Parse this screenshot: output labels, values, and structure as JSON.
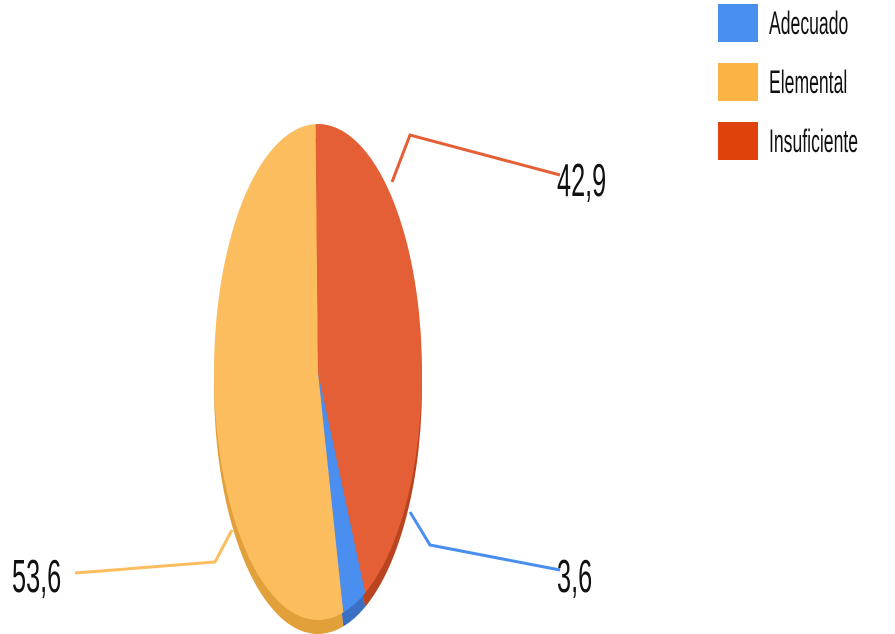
{
  "chart_data": {
    "type": "pie",
    "title": "",
    "legend_position": "right",
    "slices": [
      {
        "name": "Adecuado",
        "value": 3.6,
        "label": "3,6",
        "color": "#4a8ef0",
        "side": "#3a70c4"
      },
      {
        "name": "Elemental",
        "value": 53.6,
        "label": "53,6",
        "color": "#fbbd5d",
        "side": "#e2a03b"
      },
      {
        "name": "Insuficiente",
        "value": 42.9,
        "label": "42,9",
        "color": "#e45f35",
        "side": "#b9441f"
      }
    ]
  },
  "legend": [
    {
      "label": "Adecuado",
      "color": "#4a8ef0"
    },
    {
      "label": "Elemental",
      "color": "#fbb343"
    },
    {
      "label": "Insuficiente",
      "color": "#e0420e"
    }
  ]
}
